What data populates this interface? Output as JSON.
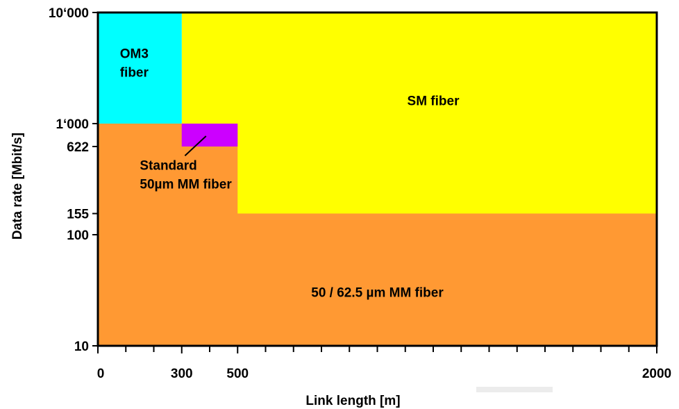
{
  "chart_data": {
    "type": "area",
    "title": "",
    "xlabel": "Link length [m]",
    "ylabel": "Data rate [Mbit/s]",
    "xlim": [
      0,
      2000
    ],
    "ylim": [
      10,
      10000
    ],
    "y_scale": "log",
    "x_ticks": [
      {
        "value": 0,
        "label": "0"
      },
      {
        "value": 300,
        "label": "300"
      },
      {
        "value": 500,
        "label": "500"
      },
      {
        "value": 2000,
        "label": "2000"
      }
    ],
    "x_minor_ticks": [
      100,
      200,
      400,
      600,
      700,
      800,
      900,
      1000,
      1100,
      1200,
      1300,
      1400,
      1500,
      1600,
      1700,
      1800,
      1900
    ],
    "y_ticks": [
      {
        "value": 10,
        "label": "10"
      },
      {
        "value": 100,
        "label": "100"
      },
      {
        "value": 155,
        "label": "155"
      },
      {
        "value": 622,
        "label": "622"
      },
      {
        "value": 1000,
        "label": "1‘000"
      },
      {
        "value": 10000,
        "label": "10‘000"
      }
    ],
    "regions": [
      {
        "name": "SM fiber",
        "color": "#ffff00",
        "x": [
          300,
          2000
        ],
        "y": [
          155,
          10000
        ],
        "label_lines": [
          "SM fiber"
        ],
        "label_at": [
          1200,
          1600
        ]
      },
      {
        "name": "50 / 62.5 µm MM fiber",
        "color": "#ff9933",
        "polygon": [
          [
            0,
            10
          ],
          [
            2000,
            10
          ],
          [
            2000,
            155
          ],
          [
            500,
            155
          ],
          [
            500,
            1000
          ],
          [
            0,
            1000
          ]
        ],
        "label_lines": [
          "50 / 62.5 µm MM fiber"
        ],
        "label_at": [
          1000,
          30
        ]
      },
      {
        "name": "OM3 fiber",
        "color": "#00ffff",
        "x": [
          0,
          300
        ],
        "y": [
          1000,
          10000
        ],
        "label_lines": [
          "OM3",
          "fiber"
        ],
        "label_at": [
          130,
          3500
        ]
      },
      {
        "name": "Standard 50µm MM fiber",
        "color": "#cc00ff",
        "x": [
          300,
          500
        ],
        "y": [
          622,
          1000
        ],
        "label_lines": [
          "Standard",
          "50µm MM fiber"
        ],
        "label_at": [
          150,
          420
        ]
      }
    ],
    "grid": false,
    "legend": "none"
  }
}
